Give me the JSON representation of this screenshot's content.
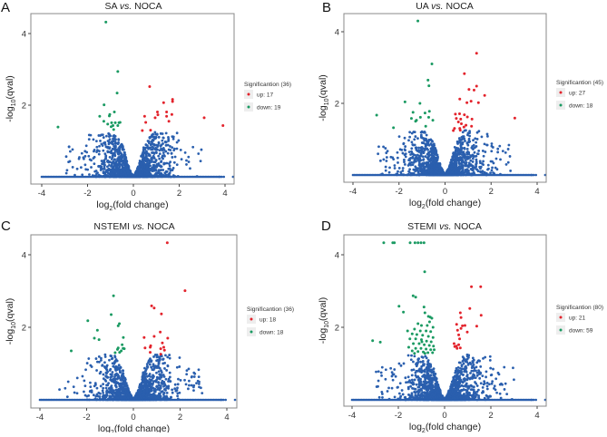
{
  "colors": {
    "up": "#e3232c",
    "down": "#1a9a62",
    "ns": "#2a5fae",
    "frame": "#888888",
    "legend_key_bg": "#eeeeee"
  },
  "chart_data": [
    {
      "type": "scatter",
      "panel_label": "A",
      "title": {
        "a": "SA ",
        "vs": "vs.",
        "b": " NOCA"
      },
      "xlabel": {
        "pre": "log",
        "sub": "2",
        "post": "(fold change)"
      },
      "ylabel": {
        "pre": "-log",
        "sub": "10",
        "post": "(qval)"
      },
      "xlim": [
        -4.45,
        4.4
      ],
      "ylim": [
        -0.2,
        4.5
      ],
      "xticks": [
        "-4",
        "-2",
        "0",
        "2",
        "4"
      ],
      "xtick_values": [
        -4,
        -2,
        0,
        2,
        4
      ],
      "yticks": [
        "2",
        "4"
      ],
      "ytick_values": [
        2,
        4
      ],
      "legend": {
        "title": "Significantion (36)",
        "up": "up: 17",
        "down": "down: 19",
        "placement": "right"
      },
      "up": [
        [
          0.71,
          2.52
        ],
        [
          1.32,
          2.07
        ],
        [
          1.71,
          2.16
        ],
        [
          1.71,
          2.1
        ],
        [
          1.05,
          1.81
        ],
        [
          1.07,
          1.73
        ],
        [
          1.45,
          1.81
        ],
        [
          1.68,
          1.74
        ],
        [
          1.45,
          1.69
        ],
        [
          0.49,
          1.69
        ],
        [
          0.95,
          1.65
        ],
        [
          0.54,
          1.52
        ],
        [
          1.55,
          1.55
        ],
        [
          3.09,
          1.65
        ],
        [
          0.39,
          1.29
        ],
        [
          0.75,
          1.3
        ],
        [
          3.91,
          1.43
        ]
      ],
      "down": [
        [
          -1.2,
          4.32
        ],
        [
          -0.68,
          2.94
        ],
        [
          -0.71,
          2.34
        ],
        [
          -1.28,
          2.01
        ],
        [
          -1.47,
          1.69
        ],
        [
          -1.03,
          1.74
        ],
        [
          -1.05,
          1.7
        ],
        [
          -0.83,
          1.81
        ],
        [
          -1.29,
          1.55
        ],
        [
          -0.95,
          1.51
        ],
        [
          -0.79,
          1.51
        ],
        [
          -0.63,
          1.51
        ],
        [
          -0.89,
          1.43
        ],
        [
          -0.68,
          1.43
        ],
        [
          -0.58,
          1.52
        ],
        [
          -0.86,
          1.32
        ],
        [
          -0.97,
          1.4
        ],
        [
          -3.29,
          1.39
        ],
        [
          -1.12,
          1.47
        ]
      ]
    },
    {
      "type": "scatter",
      "panel_label": "B",
      "title": {
        "a": "UA ",
        "vs": "vs.",
        "b": " NOCA"
      },
      "xlabel": {
        "pre": "log",
        "sub": "2",
        "post": "(fold change)"
      },
      "ylabel": {
        "pre": "-log",
        "sub": "10",
        "post": "(qval)"
      },
      "xlim": [
        -4.4,
        4.4
      ],
      "ylim": [
        -0.2,
        4.5
      ],
      "xticks": [
        "-4",
        "-2",
        "0",
        "2",
        "4"
      ],
      "xtick_values": [
        -4,
        -2,
        0,
        2,
        4
      ],
      "yticks": [
        "2",
        "4"
      ],
      "ytick_values": [
        2,
        4
      ],
      "legend": {
        "title": "Significantion (45)",
        "up": "up: 27",
        "down": "down: 18",
        "placement": "right"
      },
      "up": [
        [
          1.37,
          3.4
        ],
        [
          0.84,
          2.83
        ],
        [
          1.37,
          2.48
        ],
        [
          1.04,
          2.39
        ],
        [
          1.26,
          2.37
        ],
        [
          1.72,
          2.22
        ],
        [
          0.64,
          2.12
        ],
        [
          1.13,
          2.06
        ],
        [
          0.95,
          2.02
        ],
        [
          1.45,
          2.02
        ],
        [
          0.45,
          1.7
        ],
        [
          0.63,
          1.71
        ],
        [
          0.84,
          1.68
        ],
        [
          0.49,
          1.58
        ],
        [
          0.97,
          1.62
        ],
        [
          0.68,
          1.56
        ],
        [
          1.17,
          1.56
        ],
        [
          0.58,
          1.48
        ],
        [
          0.71,
          1.43
        ],
        [
          0.91,
          1.39
        ],
        [
          1.15,
          1.36
        ],
        [
          0.41,
          1.3
        ],
        [
          0.64,
          1.3
        ],
        [
          0.82,
          1.34
        ],
        [
          3.03,
          1.59
        ],
        [
          0.36,
          1.24
        ],
        [
          0.66,
          1.25
        ]
      ],
      "down": [
        [
          -1.18,
          4.3
        ],
        [
          -0.57,
          3.1
        ],
        [
          -0.74,
          2.65
        ],
        [
          -0.7,
          2.49
        ],
        [
          -1.74,
          2.04
        ],
        [
          -1.09,
          2.0
        ],
        [
          -1.39,
          1.75
        ],
        [
          -1.07,
          1.61
        ],
        [
          -1.24,
          1.53
        ],
        [
          -0.68,
          1.78
        ],
        [
          -0.87,
          1.73
        ],
        [
          -0.53,
          1.53
        ],
        [
          -0.71,
          1.61
        ],
        [
          -2.24,
          1.32
        ],
        [
          -2.97,
          1.67
        ],
        [
          -0.84,
          1.36
        ],
        [
          -1.46,
          1.58
        ],
        [
          -1.28,
          1.5
        ]
      ]
    },
    {
      "type": "scatter",
      "panel_label": "C",
      "title": {
        "a": "NSTEMI ",
        "vs": "vs.",
        "b": " NOCA"
      },
      "xlabel": {
        "pre": "log",
        "sub": "2",
        "post": "(fold change)"
      },
      "ylabel": {
        "pre": "-log",
        "sub": "10",
        "post": "(qval)"
      },
      "xlim": [
        -4.4,
        4.4
      ],
      "ylim": [
        -0.2,
        4.5
      ],
      "xticks": [
        "-4",
        "-2",
        "0",
        "2",
        "4"
      ],
      "xtick_values": [
        -4,
        -2,
        0,
        2,
        4
      ],
      "yticks": [
        "2",
        "4"
      ],
      "ytick_values": [
        2,
        4
      ],
      "legend": {
        "title": "Significantion (36)",
        "up": "up: 18",
        "down": "down: 18",
        "placement": "right"
      },
      "up": [
        [
          1.45,
          4.33
        ],
        [
          2.21,
          3.01
        ],
        [
          0.78,
          2.59
        ],
        [
          0.89,
          2.53
        ],
        [
          1.2,
          2.37
        ],
        [
          1.15,
          1.87
        ],
        [
          0.46,
          1.72
        ],
        [
          0.89,
          1.75
        ],
        [
          1.47,
          1.7
        ],
        [
          0.5,
          1.43
        ],
        [
          0.72,
          1.45
        ],
        [
          1.24,
          1.57
        ],
        [
          0.72,
          1.31
        ],
        [
          1.17,
          1.41
        ],
        [
          1.3,
          1.45
        ],
        [
          0.74,
          1.49
        ],
        [
          1.17,
          1.26
        ],
        [
          1.33,
          1.37
        ]
      ],
      "down": [
        [
          -0.85,
          2.87
        ],
        [
          -0.95,
          2.35
        ],
        [
          -1.95,
          2.18
        ],
        [
          -0.6,
          2.1
        ],
        [
          -0.65,
          2.04
        ],
        [
          -1.54,
          1.92
        ],
        [
          -1.67,
          1.7
        ],
        [
          -1.47,
          1.66
        ],
        [
          -0.43,
          1.72
        ],
        [
          -0.65,
          1.43
        ],
        [
          -0.68,
          1.39
        ],
        [
          -0.44,
          1.42
        ],
        [
          -0.39,
          1.41
        ],
        [
          -0.52,
          1.35
        ],
        [
          -0.48,
          1.52
        ],
        [
          -2.66,
          1.35
        ],
        [
          -0.78,
          1.3
        ],
        [
          -0.59,
          1.31
        ]
      ]
    },
    {
      "type": "scatter",
      "panel_label": "D",
      "title": {
        "a": "STEMI ",
        "vs": "vs.",
        "b": " NOCA"
      },
      "xlabel": {
        "pre": "log",
        "sub": "2",
        "post": "(fold change)"
      },
      "ylabel": {
        "pre": "-log",
        "sub": "10",
        "post": "(qval)"
      },
      "xlim": [
        -4.4,
        4.4
      ],
      "ylim": [
        -0.2,
        4.5
      ],
      "xticks": [
        "-4",
        "-2",
        "0",
        "2",
        "4"
      ],
      "xtick_values": [
        -4,
        -2,
        0,
        2,
        4
      ],
      "yticks": [
        "2",
        "4"
      ],
      "ytick_values": [
        2,
        4
      ],
      "legend": {
        "title": "Significantion (80)",
        "up": "up: 21",
        "down": "down: 59",
        "placement": "right"
      },
      "up": [
        [
          1.16,
          3.12
        ],
        [
          1.56,
          3.12
        ],
        [
          1.09,
          2.52
        ],
        [
          1.58,
          2.33
        ],
        [
          0.68,
          2.4
        ],
        [
          0.71,
          2.27
        ],
        [
          0.52,
          2.08
        ],
        [
          0.77,
          2.04
        ],
        [
          0.88,
          2.05
        ],
        [
          1.39,
          2.03
        ],
        [
          0.98,
          1.87
        ],
        [
          0.56,
          1.92
        ],
        [
          0.71,
          1.97
        ],
        [
          0.61,
          1.79
        ],
        [
          0.41,
          1.55
        ],
        [
          0.44,
          1.47
        ],
        [
          0.61,
          1.52
        ],
        [
          0.54,
          1.42
        ],
        [
          0.51,
          1.48
        ],
        [
          0.68,
          1.43
        ],
        [
          0.65,
          1.68
        ]
      ],
      "down": [
        [
          -2.63,
          4.33
        ],
        [
          -2.24,
          4.33
        ],
        [
          -2.17,
          4.33
        ],
        [
          -1.49,
          4.33
        ],
        [
          -1.28,
          4.33
        ],
        [
          -1.15,
          4.33
        ],
        [
          -1.02,
          4.33
        ],
        [
          -0.89,
          4.33
        ],
        [
          -0.86,
          3.53
        ],
        [
          -1.36,
          2.87
        ],
        [
          -1.25,
          2.83
        ],
        [
          -0.89,
          2.56
        ],
        [
          -1.97,
          2.58
        ],
        [
          -1.78,
          2.42
        ],
        [
          -3.11,
          1.63
        ],
        [
          -2.78,
          1.59
        ],
        [
          -0.85,
          2.4
        ],
        [
          -0.7,
          2.3
        ],
        [
          -0.55,
          2.25
        ],
        [
          -0.65,
          2.15
        ],
        [
          -1.0,
          2.05
        ],
        [
          -0.75,
          2.05
        ],
        [
          -0.5,
          2.0
        ],
        [
          -1.3,
          1.95
        ],
        [
          -1.05,
          1.9
        ],
        [
          -0.8,
          1.9
        ],
        [
          -0.6,
          1.88
        ],
        [
          -1.4,
          1.82
        ],
        [
          -1.2,
          1.8
        ],
        [
          -0.95,
          1.78
        ],
        [
          -0.7,
          1.75
        ],
        [
          -0.5,
          1.72
        ],
        [
          -1.5,
          1.68
        ],
        [
          -1.25,
          1.68
        ],
        [
          -1.0,
          1.66
        ],
        [
          -0.78,
          1.62
        ],
        [
          -0.58,
          1.6
        ],
        [
          -1.35,
          1.55
        ],
        [
          -1.1,
          1.55
        ],
        [
          -0.88,
          1.52
        ],
        [
          -0.66,
          1.5
        ],
        [
          -0.48,
          1.48
        ],
        [
          -1.55,
          1.45
        ],
        [
          -1.25,
          1.42
        ],
        [
          -1.02,
          1.42
        ],
        [
          -0.8,
          1.4
        ],
        [
          -0.6,
          1.38
        ],
        [
          -0.45,
          1.38
        ],
        [
          -1.4,
          1.35
        ],
        [
          -1.15,
          1.33
        ],
        [
          -0.92,
          1.32
        ],
        [
          -0.72,
          1.3
        ],
        [
          -0.52,
          1.3
        ],
        [
          -1.3,
          1.28
        ],
        [
          -0.85,
          1.28
        ],
        [
          -1.6,
          1.9
        ],
        [
          -0.62,
          2.28
        ],
        [
          -1.15,
          2.1
        ],
        [
          -0.98,
          1.6
        ]
      ]
    }
  ]
}
